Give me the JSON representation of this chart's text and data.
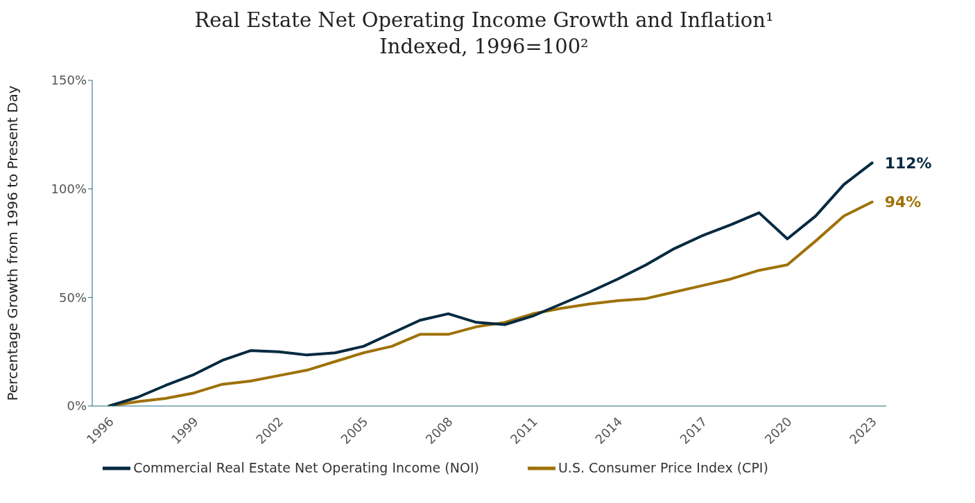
{
  "chart_data": {
    "type": "line",
    "title": "Real Estate Net Operating Income Growth and Inflation¹",
    "subtitle": "Indexed, 1996=100²",
    "ylabel": "Percentage Growth from 1996 to Present Day",
    "x": [
      1996,
      1997,
      1998,
      1999,
      2000,
      2001,
      2002,
      2003,
      2004,
      2005,
      2006,
      2007,
      2008,
      2009,
      2010,
      2011,
      2012,
      2013,
      2014,
      2015,
      2016,
      2017,
      2018,
      2019,
      2020,
      2021,
      2022,
      2023
    ],
    "series": [
      {
        "name": "U.S. Consumer Price Index (CPI)",
        "color": "#9e7208",
        "values": [
          0,
          2,
          3.5,
          6,
          10,
          11.5,
          14,
          16.5,
          20.5,
          24.5,
          27.5,
          33,
          33,
          36.5,
          38.5,
          42.5,
          45,
          47,
          48.5,
          49.5,
          52.5,
          55.5,
          58.5,
          62.5,
          65,
          76,
          87.5,
          94
        ],
        "value_labels": [
          null,
          null,
          null,
          null,
          null,
          null,
          null,
          null,
          null,
          null,
          null,
          null,
          null,
          null,
          null,
          null,
          null,
          null,
          null,
          null,
          null,
          null,
          null,
          null,
          null,
          null,
          null,
          "94%"
        ]
      },
      {
        "name": "Commercial Real Estate Net Operating Income (NOI)",
        "color": "#062a40",
        "values": [
          0,
          4,
          9.5,
          14.5,
          21,
          25.5,
          25,
          23.5,
          24.5,
          27.5,
          33.5,
          39.5,
          42.5,
          38.5,
          37.5,
          41.5,
          47,
          52.5,
          58.5,
          65,
          72.5,
          78.5,
          83.5,
          89,
          77,
          87.5,
          102,
          112
        ],
        "value_labels": [
          null,
          null,
          null,
          null,
          null,
          null,
          null,
          null,
          null,
          null,
          null,
          null,
          null,
          null,
          null,
          null,
          null,
          null,
          null,
          null,
          null,
          null,
          null,
          null,
          null,
          null,
          null,
          "112%"
        ]
      }
    ],
    "xlim": [
      1995.4,
      2023.5
    ],
    "xticks": [
      1996,
      1999,
      2002,
      2005,
      2008,
      2011,
      2014,
      2017,
      2020,
      2023
    ],
    "ylim": [
      0,
      150
    ],
    "yticks": [
      {
        "value": 0,
        "label": "0%"
      },
      {
        "value": 50,
        "label": "50%"
      },
      {
        "value": 100,
        "label": "100%"
      },
      {
        "value": 150,
        "label": "150%"
      }
    ],
    "grid": false,
    "legend": "bottom",
    "marker": "none",
    "line_style": "solid"
  }
}
